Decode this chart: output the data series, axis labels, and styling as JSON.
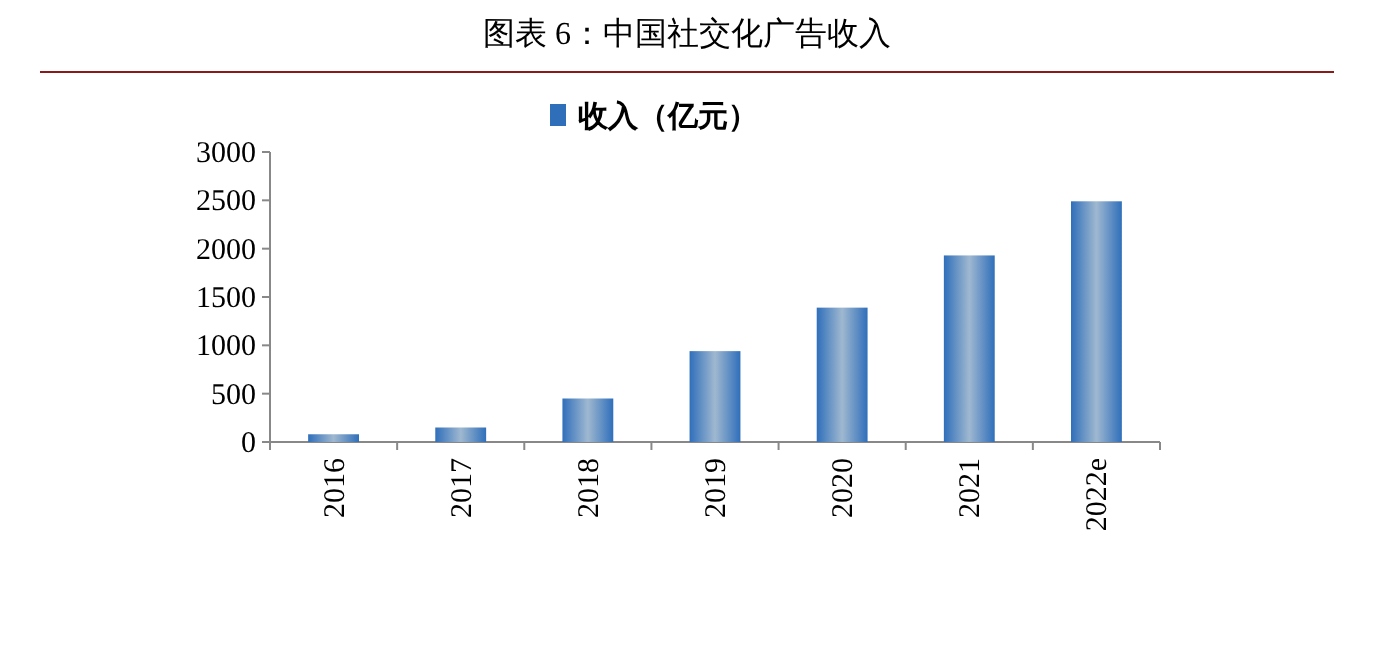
{
  "chart_data": {
    "type": "bar",
    "title": "图表 6：中国社交化广告收入",
    "categories": [
      "2016",
      "2017",
      "2018",
      "2019",
      "2020",
      "2021",
      "2022e"
    ],
    "series": [
      {
        "name": "收入（亿元）",
        "color": "#2f6fba",
        "values": [
          80,
          150,
          450,
          940,
          1390,
          1930,
          2490
        ]
      }
    ],
    "ylim": [
      0,
      3000
    ],
    "yticks": [
      0,
      500,
      1000,
      1500,
      2000,
      2500,
      3000
    ],
    "grid": false,
    "legend": "top"
  }
}
